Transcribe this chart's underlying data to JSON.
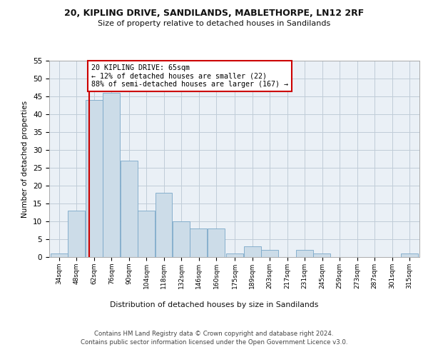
{
  "title1": "20, KIPLING DRIVE, SANDILANDS, MABLETHORPE, LN12 2RF",
  "title2": "Size of property relative to detached houses in Sandilands",
  "xlabel": "Distribution of detached houses by size in Sandilands",
  "ylabel": "Number of detached properties",
  "bins": [
    34,
    48,
    62,
    76,
    90,
    104,
    118,
    132,
    146,
    160,
    175,
    189,
    203,
    217,
    231,
    245,
    259,
    273,
    287,
    301,
    315
  ],
  "counts": [
    1,
    13,
    44,
    46,
    27,
    13,
    18,
    10,
    8,
    8,
    1,
    3,
    2,
    0,
    2,
    1,
    0,
    0,
    0,
    0,
    1
  ],
  "bar_color": "#ccdce8",
  "bar_edge_color": "#7aa8c8",
  "property_size": 65,
  "red_line_color": "#cc0000",
  "annotation_text": "20 KIPLING DRIVE: 65sqm\n← 12% of detached houses are smaller (22)\n88% of semi-detached houses are larger (167) →",
  "annotation_box_color": "#ffffff",
  "annotation_box_edge": "#cc0000",
  "ylim": [
    0,
    55
  ],
  "yticks": [
    0,
    5,
    10,
    15,
    20,
    25,
    30,
    35,
    40,
    45,
    50,
    55
  ],
  "footer": "Contains HM Land Registry data © Crown copyright and database right 2024.\nContains public sector information licensed under the Open Government Licence v3.0.",
  "bg_color": "#eaf0f6",
  "grid_color": "#c0ccd8"
}
